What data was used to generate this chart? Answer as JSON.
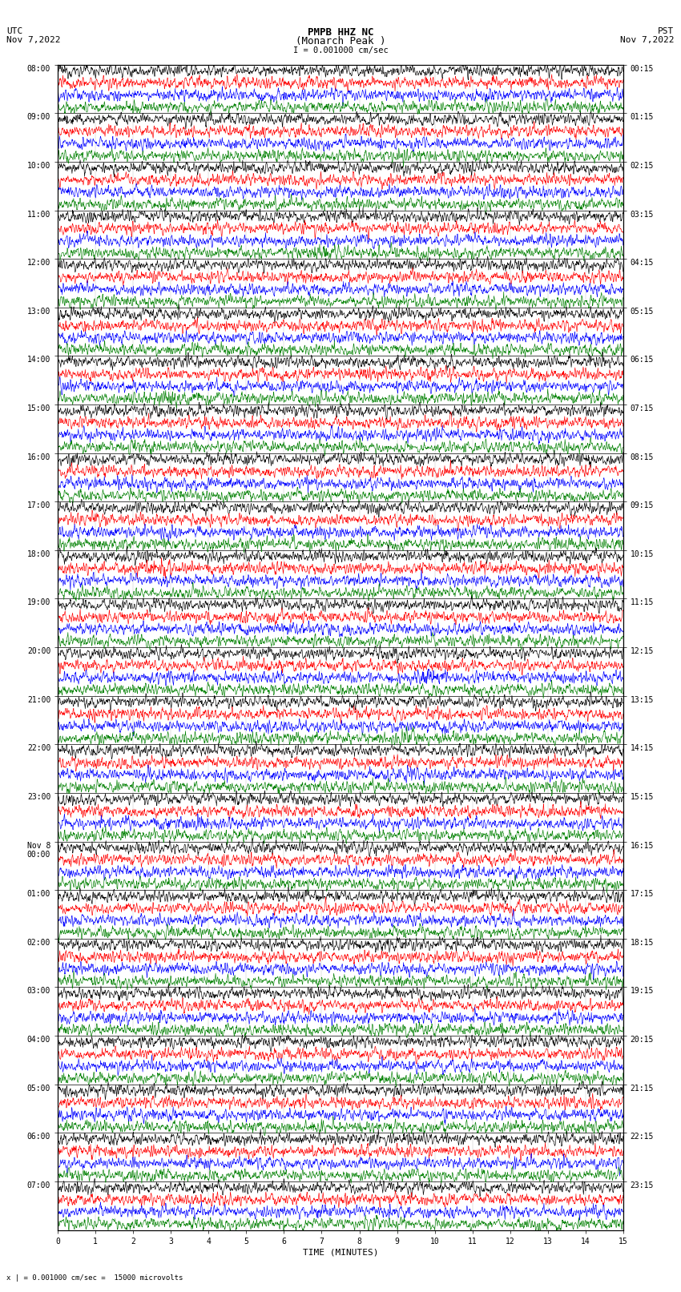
{
  "title_line1": "PMPB HHZ NC",
  "title_line2": "(Monarch Peak )",
  "scale_label": "I = 0.001000 cm/sec",
  "bottom_label": "x | = 0.001000 cm/sec =  15000 microvolts",
  "utc_label": "UTC\nNov 7,2022",
  "pst_label": "PST\nNov 7,2022",
  "xlabel": "TIME (MINUTES)",
  "left_times": [
    "08:00",
    "09:00",
    "10:00",
    "11:00",
    "12:00",
    "13:00",
    "14:00",
    "15:00",
    "16:00",
    "17:00",
    "18:00",
    "19:00",
    "20:00",
    "21:00",
    "22:00",
    "23:00",
    "Nov 8\n00:00",
    "01:00",
    "02:00",
    "03:00",
    "04:00",
    "05:00",
    "06:00",
    "07:00"
  ],
  "right_times": [
    "00:15",
    "01:15",
    "02:15",
    "03:15",
    "04:15",
    "05:15",
    "06:15",
    "07:15",
    "08:15",
    "09:15",
    "10:15",
    "11:15",
    "12:15",
    "13:15",
    "14:15",
    "15:15",
    "16:15",
    "17:15",
    "18:15",
    "19:15",
    "20:15",
    "21:15",
    "22:15",
    "23:15"
  ],
  "n_hours": 24,
  "traces_per_hour": 4,
  "row_colors": [
    "black",
    "red",
    "blue",
    "green"
  ],
  "fig_width": 8.5,
  "fig_height": 16.13,
  "bg_color": "white",
  "trace_linewidth": 0.45,
  "minutes_ticks": [
    0,
    1,
    2,
    3,
    4,
    5,
    6,
    7,
    8,
    9,
    10,
    11,
    12,
    13,
    14,
    15
  ]
}
